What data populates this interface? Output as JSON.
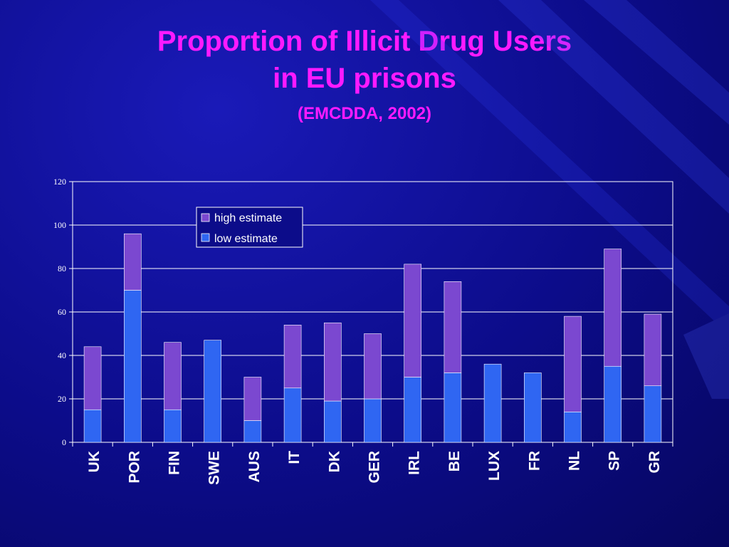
{
  "slide": {
    "title_line1": "Proportion of Illicit Drug Users",
    "title_line2": "in EU prisons",
    "subtitle": "(EMCDDA, 2002)"
  },
  "colors": {
    "high": "#7b48d0",
    "low": "#2f66f2",
    "title": "#ff1aff"
  },
  "chart_data": {
    "type": "bar",
    "stacked": true,
    "categories": [
      "UK",
      "POR",
      "FIN",
      "SWE",
      "AUS",
      "IT",
      "DK",
      "GER",
      "IRL",
      "BE",
      "LUX",
      "FR",
      "NL",
      "SP",
      "GR"
    ],
    "series": [
      {
        "name": "low estimate",
        "values": [
          15,
          70,
          15,
          47,
          10,
          25,
          19,
          20,
          30,
          32,
          36,
          32,
          14,
          35,
          26
        ]
      },
      {
        "name": "high estimate",
        "values": [
          29,
          26,
          31,
          0,
          20,
          29,
          36,
          30,
          52,
          42,
          0,
          0,
          44,
          54,
          33
        ]
      }
    ],
    "totals": [
      44,
      96,
      46,
      47,
      30,
      54,
      55,
      50,
      82,
      74,
      36,
      32,
      58,
      89,
      59
    ],
    "ylim": [
      0,
      120
    ],
    "yticks": [
      0,
      20,
      40,
      60,
      80,
      100,
      120
    ],
    "xlabel": "",
    "ylabel": "",
    "grid": true,
    "legend": [
      "high estimate",
      "low estimate"
    ],
    "legend_position": "top-center"
  }
}
